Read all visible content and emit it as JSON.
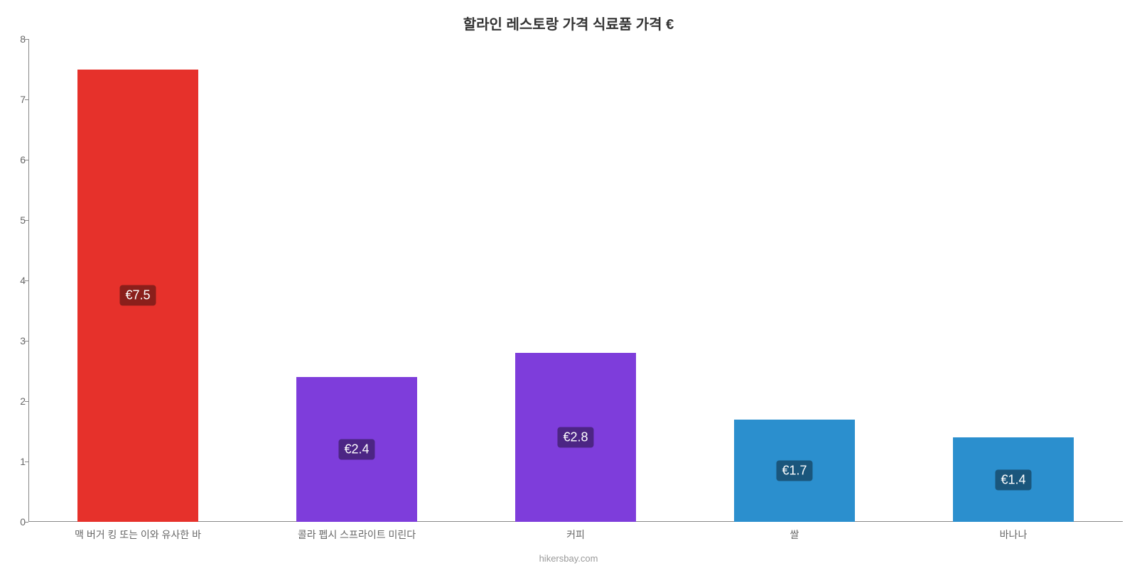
{
  "chart": {
    "type": "bar",
    "title": "할라인 레스토랑 가격 식료품 가격 €",
    "title_fontsize": 20,
    "title_color": "#333333",
    "background_color": "#ffffff",
    "axis_color": "#888888",
    "tick_color": "#666666",
    "tick_fontsize": 14,
    "ylim": [
      0,
      8
    ],
    "ytick_step": 1,
    "yticks": [
      0,
      1,
      2,
      3,
      4,
      5,
      6,
      7,
      8
    ],
    "bar_width_ratio": 0.55,
    "categories": [
      "맥 버거 킹 또는 이와 유사한 바",
      "콜라 펩시 스프라이트 미린다",
      "커피",
      "쌀",
      "바나나"
    ],
    "values": [
      7.5,
      2.4,
      2.8,
      1.7,
      1.4
    ],
    "value_labels": [
      "€7.5",
      "€2.4",
      "€2.8",
      "€1.7",
      "€1.4"
    ],
    "bar_colors": [
      "#e6312b",
      "#7e3ddb",
      "#7e3ddb",
      "#2b8fce",
      "#2b8fce"
    ],
    "label_bg_colors": [
      "#8a1f1b",
      "#4c2584",
      "#4c2584",
      "#1a567c",
      "#1a567c"
    ],
    "label_text_color": "#ffffff",
    "label_fontsize": 18,
    "xcat_fontsize": 14,
    "attribution": "hikersbay.com",
    "attribution_color": "#999999",
    "attribution_fontsize": 13
  }
}
